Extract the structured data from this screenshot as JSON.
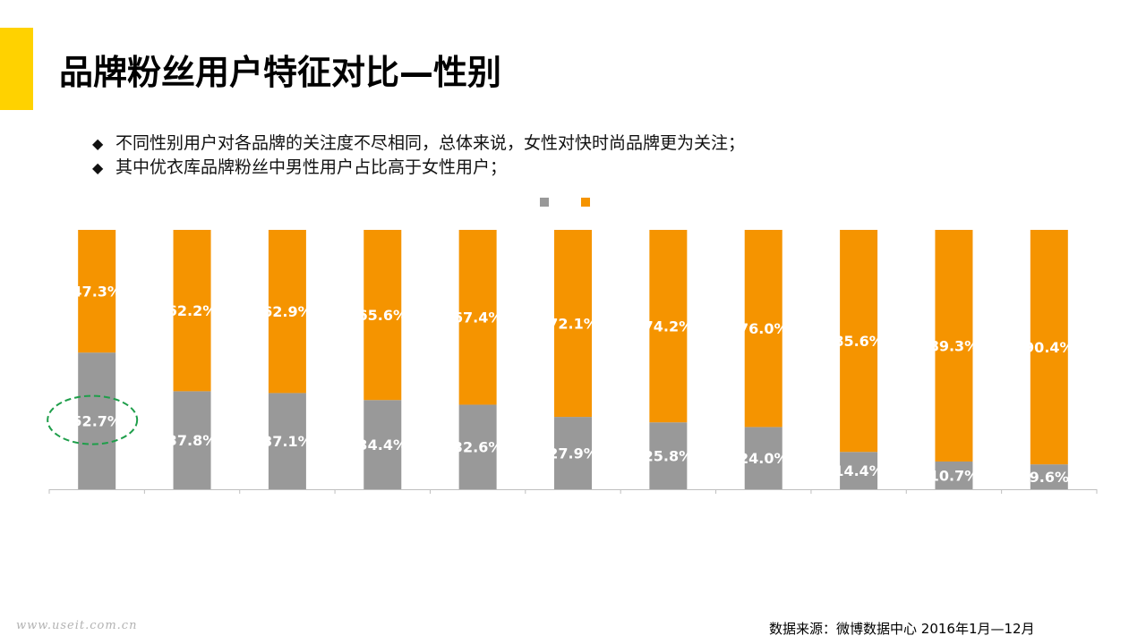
{
  "colors": {
    "accent": "#FFD200",
    "male": "#999999",
    "female": "#F59400",
    "highlight": "#1E9E4A",
    "axis": "#BFBFBF",
    "label": "#FFFFFF"
  },
  "title": "品牌粉丝用户特征对比—性别",
  "bullets": [
    {
      "marker": "◆",
      "text": "不同性别用户对各品牌的关注度不尽相同，总体来说，女性对快时尚品牌更为关注；"
    },
    {
      "marker": "◆",
      "text": "其中优衣库品牌粉丝中男性用户占比高于女性用户；"
    }
  ],
  "chart_data": {
    "type": "bar",
    "stacked": true,
    "percent_stacked": true,
    "legend_position": "top-center",
    "categories": [
      "",
      "",
      "",
      "",
      "",
      "",
      "",
      "",
      "",
      "",
      ""
    ],
    "series": [
      {
        "color": "#999999",
        "values": [
          52.7,
          37.8,
          37.1,
          34.4,
          32.6,
          27.9,
          25.8,
          24.0,
          14.4,
          10.7,
          9.6
        ],
        "labels": [
          "52.7%",
          "37.8%",
          "37.1%",
          "34.4%",
          "32.6%",
          "27.9%",
          "25.8%",
          "24.0%",
          "14.4%",
          "10.7%",
          "9.6%"
        ]
      },
      {
        "color": "#F59400",
        "values": [
          47.3,
          62.2,
          62.9,
          65.6,
          67.4,
          72.1,
          74.2,
          76.0,
          85.6,
          89.3,
          90.4
        ],
        "labels": [
          "47.3%",
          "62.2%",
          "62.9%",
          "65.6%",
          "67.4%",
          "72.1%",
          "74.2%",
          "76.0%",
          "85.6%",
          "89.3%",
          "90.4%"
        ]
      }
    ],
    "ylim": [
      0,
      100
    ],
    "highlighted_category_index": 0
  },
  "watermark": "www.useit.com.cn",
  "source": "数据来源：微博数据中心 2016年1月—12月"
}
